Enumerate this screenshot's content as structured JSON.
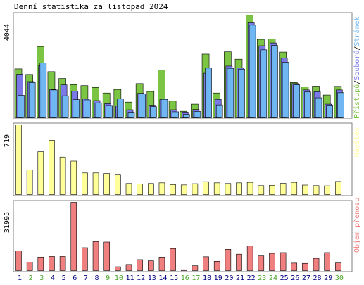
{
  "chart_data": {
    "type": "bar",
    "title": "Denní statistika za listopad 2024",
    "categories": [
      "1",
      "2",
      "3",
      "4",
      "5",
      "6",
      "7",
      "8",
      "9",
      "10",
      "11",
      "12",
      "13",
      "14",
      "15",
      "16",
      "17",
      "18",
      "19",
      "20",
      "21",
      "22",
      "23",
      "24",
      "25",
      "26",
      "27",
      "28",
      "29",
      "30"
    ],
    "weekend_days": [
      "2",
      "3",
      "9",
      "10",
      "16",
      "17",
      "23",
      "24",
      "30"
    ],
    "colors": {
      "hits": "#7cc544",
      "files": "#7b79e8",
      "pages": "#6fb6f2",
      "visits": "#ffff99",
      "kbytes": "#f08080",
      "weekday_label": "#000080",
      "weekend_label": "#4aa52a",
      "frame": "#808080"
    },
    "panels": [
      {
        "name": "traffic",
        "ymax_label": "4044",
        "ymax": 4044,
        "legend": [
          {
            "text": "Přístupů",
            "color": "#7cc544"
          },
          {
            "text": "/",
            "color": "#000000"
          },
          {
            "text": "Souborů",
            "color": "#7b79e8"
          },
          {
            "text": "/",
            "color": "#000000"
          },
          {
            "text": "Stránek",
            "color": "#6fb6f2"
          }
        ],
        "series": [
          {
            "name": "Přístupů",
            "values": [
              1900,
              1680,
              2780,
              1790,
              1520,
              1280,
              1240,
              1170,
              950,
              1090,
              590,
              1320,
              1010,
              1850,
              630,
              230,
              510,
              2480,
              950,
              2570,
              2280,
              4010,
              3060,
              3080,
              2560,
              1360,
              1190,
              1220,
              870,
              1210
            ]
          },
          {
            "name": "Souborů",
            "values": [
              1690,
              1400,
              2030,
              1090,
              1270,
              1020,
              720,
              650,
              530,
              440,
              290,
              940,
              470,
              690,
              290,
              200,
              300,
              1730,
              700,
              2010,
              1940,
              3740,
              2810,
              2920,
              2320,
              1320,
              1070,
              1000,
              510,
              1070
            ]
          },
          {
            "name": "Stránek",
            "values": [
              860,
              1360,
              2130,
              1070,
              840,
              690,
              680,
              560,
              460,
              720,
              190,
              920,
              410,
              700,
              210,
              110,
              220,
              1930,
              480,
              1920,
              1890,
              3620,
              2650,
              2820,
              2160,
              1270,
              990,
              760,
              470,
              960
            ]
          }
        ]
      },
      {
        "name": "visits",
        "ymax_label": "719",
        "ymax": 719,
        "legend": [
          {
            "text": "Návštěv",
            "color": "#ffff99"
          }
        ],
        "series": [
          {
            "name": "Návštěv",
            "values": [
              719,
              255,
              442,
              560,
              387,
              345,
              223,
              223,
              217,
              209,
              114,
              109,
              114,
              121,
              102,
              99,
              112,
              133,
              121,
              114,
              121,
              126,
              92,
              96,
              116,
              126,
              98,
              92,
              90,
              135
            ]
          }
        ]
      },
      {
        "name": "kbytes",
        "ymax_label": "31995",
        "ymax": 31995,
        "legend": [
          {
            "text": "Objem přenosu",
            "color": "#f08080"
          }
        ],
        "series": [
          {
            "name": "Objem přenosu",
            "values": [
              9200,
              4020,
              6340,
              6620,
              6610,
              31995,
              10720,
              13550,
              13360,
              1800,
              2850,
              5120,
              4580,
              6320,
              10320,
              420,
              2250,
              6480,
              4350,
              9950,
              7690,
              11520,
              6870,
              8060,
              8420,
              3510,
              3380,
              5730,
              8420,
              3570
            ]
          }
        ]
      }
    ]
  }
}
